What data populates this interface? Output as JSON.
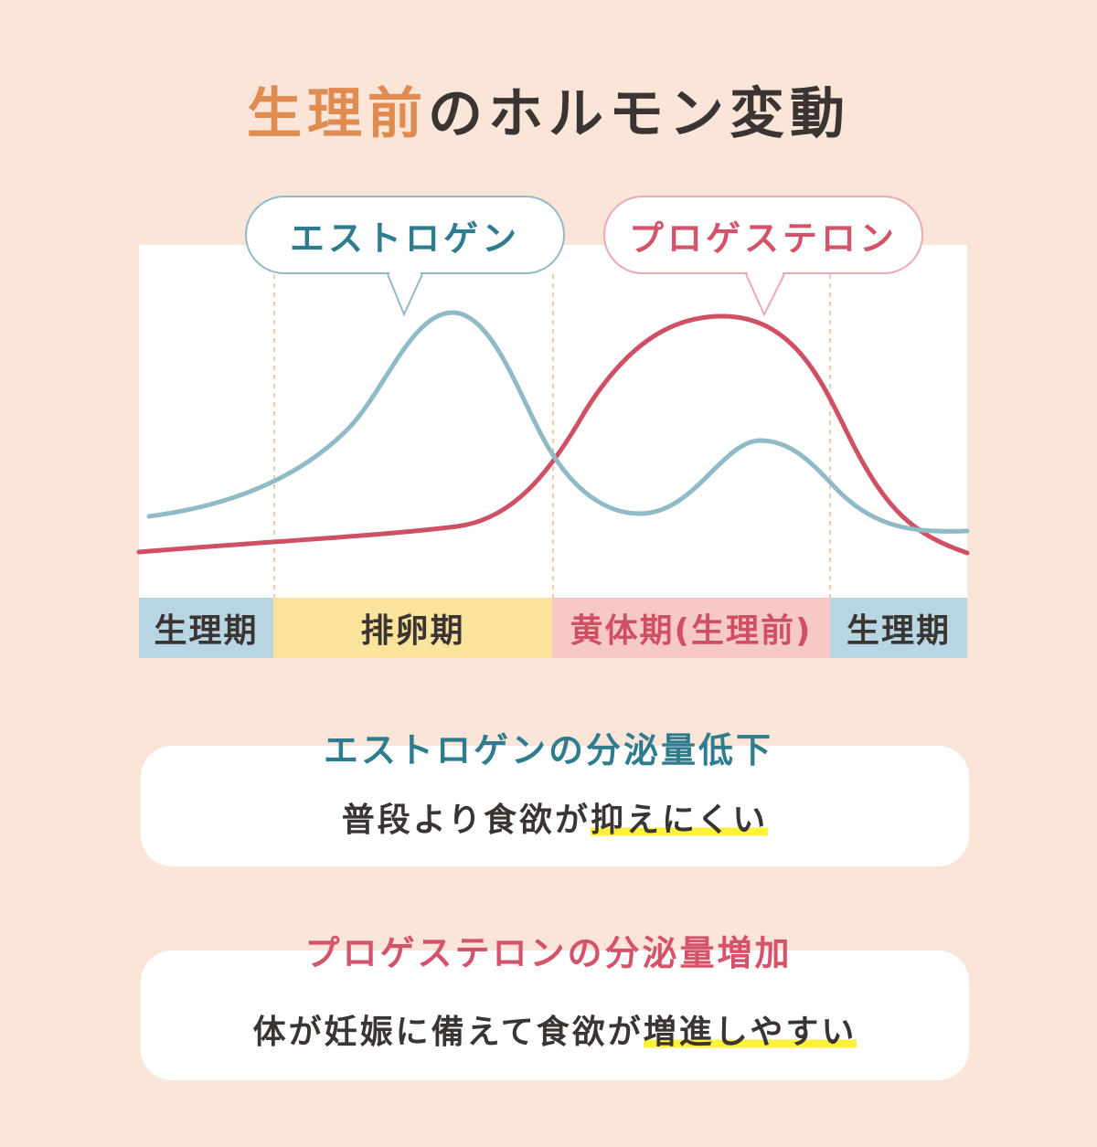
{
  "title": {
    "accent": "生理前",
    "rest": "のホルモン変動"
  },
  "labels": {
    "estrogen": "エストロゲン",
    "progesterone": "プロゲステロン"
  },
  "phases": [
    "生理期",
    "排卵期",
    "黄体期(生理前)",
    "生理期"
  ],
  "cards": [
    {
      "heading": "エストロゲンの分泌量低下",
      "text_plain": "普段より食欲が",
      "text_highlight": "抑えにくい"
    },
    {
      "heading": "プロゲステロンの分泌量増加",
      "text_plain": "体が妊娠に備えて食欲が",
      "text_highlight": "増進しやすい"
    }
  ],
  "colors": {
    "background": "#fbe4d8",
    "estrogen": "#8fbac6",
    "progesterone": "#cf4f64",
    "title_accent": "#e08b4f",
    "highlight": "#fdf23a"
  }
}
